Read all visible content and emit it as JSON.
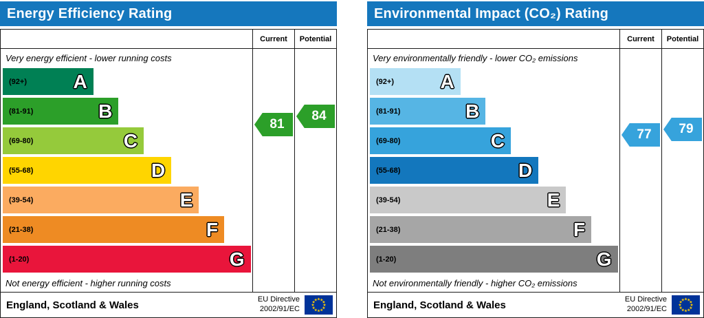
{
  "charts": [
    {
      "id": "energy-efficiency",
      "title": "Energy Efficiency Rating",
      "header_color": "#1577bd",
      "columns": {
        "current": "Current",
        "potential": "Potential"
      },
      "top_note": "Very energy efficient - lower running costs",
      "bottom_note": "Not energy efficient - higher running costs",
      "bands": [
        {
          "label": "(92+)",
          "letter": "A",
          "min": 92,
          "max": 100,
          "color": "#008054",
          "width_pct": 36
        },
        {
          "label": "(81-91)",
          "letter": "B",
          "min": 81,
          "max": 91,
          "color": "#2c9f29",
          "width_pct": 46
        },
        {
          "label": "(69-80)",
          "letter": "C",
          "min": 69,
          "max": 80,
          "color": "#95ca3b",
          "width_pct": 56
        },
        {
          "label": "(55-68)",
          "letter": "D",
          "min": 55,
          "max": 68,
          "color": "#ffd500",
          "width_pct": 67
        },
        {
          "label": "(39-54)",
          "letter": "E",
          "min": 39,
          "max": 54,
          "color": "#fbab60",
          "width_pct": 78
        },
        {
          "label": "(21-38)",
          "letter": "F",
          "min": 21,
          "max": 38,
          "color": "#ee8b23",
          "width_pct": 88
        },
        {
          "label": "(1-20)",
          "letter": "G",
          "min": 1,
          "max": 20,
          "color": "#e9153b",
          "width_pct": 98.5
        }
      ],
      "current": {
        "value": 81,
        "color": "#2c9f29"
      },
      "potential": {
        "value": 84,
        "color": "#2c9f29"
      },
      "footer": {
        "region": "England, Scotland & Wales",
        "directive1": "EU Directive",
        "directive2": "2002/91/EC"
      }
    },
    {
      "id": "environmental-impact",
      "title": "Environmental Impact (CO₂) Rating",
      "header_color": "#1577bd",
      "columns": {
        "current": "Current",
        "potential": "Potential"
      },
      "top_note": "Very environmentally friendly - lower CO₂ emissions",
      "bottom_note": "Not environmentally friendly - higher CO₂ emissions",
      "bands": [
        {
          "label": "(92+)",
          "letter": "A",
          "min": 92,
          "max": 100,
          "color": "#b4e0f4",
          "width_pct": 36
        },
        {
          "label": "(81-91)",
          "letter": "B",
          "min": 81,
          "max": 91,
          "color": "#56b5e4",
          "width_pct": 46
        },
        {
          "label": "(69-80)",
          "letter": "C",
          "min": 69,
          "max": 80,
          "color": "#36a3dc",
          "width_pct": 56
        },
        {
          "label": "(55-68)",
          "letter": "D",
          "min": 55,
          "max": 68,
          "color": "#1377bd",
          "width_pct": 67
        },
        {
          "label": "(39-54)",
          "letter": "E",
          "min": 39,
          "max": 54,
          "color": "#c9c9c9",
          "width_pct": 78
        },
        {
          "label": "(21-38)",
          "letter": "F",
          "min": 21,
          "max": 38,
          "color": "#a6a6a6",
          "width_pct": 88
        },
        {
          "label": "(1-20)",
          "letter": "G",
          "min": 1,
          "max": 20,
          "color": "#7e7e7e",
          "width_pct": 98.5
        }
      ],
      "current": {
        "value": 77,
        "color": "#36a3dc"
      },
      "potential": {
        "value": 79,
        "color": "#36a3dc"
      },
      "footer": {
        "region": "England, Scotland & Wales",
        "directive1": "EU Directive",
        "directive2": "2002/91/EC"
      }
    }
  ],
  "eu_flag": {
    "background": "#003399",
    "star_color": "#ffcc00",
    "star_count": 12
  },
  "chart_data": [
    {
      "type": "bar",
      "title": "Energy Efficiency Rating",
      "categories": [
        "A (92+)",
        "B (81-91)",
        "C (69-80)",
        "D (55-68)",
        "E (39-54)",
        "F (21-38)",
        "G (1-20)"
      ],
      "series": [
        {
          "name": "Current",
          "values": [
            81
          ],
          "band": "B"
        },
        {
          "name": "Potential",
          "values": [
            84
          ],
          "band": "B"
        }
      ],
      "value_range": [
        1,
        100
      ],
      "notes": [
        "Very energy efficient - lower running costs",
        "Not energy efficient - higher running costs"
      ],
      "region": "England, Scotland & Wales",
      "directive": "EU Directive 2002/91/EC"
    },
    {
      "type": "bar",
      "title": "Environmental Impact (CO₂) Rating",
      "categories": [
        "A (92+)",
        "B (81-91)",
        "C (69-80)",
        "D (55-68)",
        "E (39-54)",
        "F (21-38)",
        "G (1-20)"
      ],
      "series": [
        {
          "name": "Current",
          "values": [
            77
          ],
          "band": "C"
        },
        {
          "name": "Potential",
          "values": [
            79
          ],
          "band": "C"
        }
      ],
      "value_range": [
        1,
        100
      ],
      "notes": [
        "Very environmentally friendly - lower CO₂ emissions",
        "Not environmentally friendly - higher CO₂ emissions"
      ],
      "region": "England, Scotland & Wales",
      "directive": "EU Directive 2002/91/EC"
    }
  ]
}
